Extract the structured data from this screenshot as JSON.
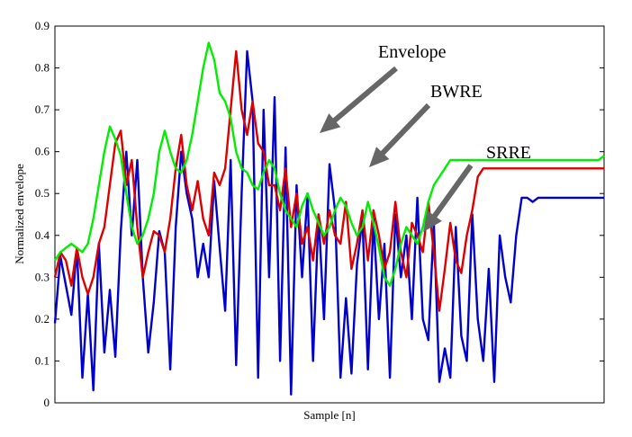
{
  "chart_data": {
    "type": "line",
    "title": "",
    "xlabel": "Sample [n]",
    "ylabel": "Normalized envelope",
    "ylim": [
      0,
      0.9
    ],
    "xlim": [
      0,
      100
    ],
    "grid": false,
    "legend": "none",
    "y_ticks": [
      "0",
      "0.1",
      "0.2",
      "0.3",
      "0.4",
      "0.5",
      "0.6",
      "0.7",
      "0.8",
      "0.9"
    ],
    "annotations": [
      {
        "text": "Envelope",
        "target": "blue"
      },
      {
        "text": "BWRE",
        "target": "green"
      },
      {
        "text": "SRRE",
        "target": "red"
      }
    ],
    "series": [
      {
        "color": "#0000cc",
        "x": [
          0,
          1,
          2,
          3,
          4,
          5,
          6,
          7,
          8,
          9,
          10,
          11,
          12,
          13,
          14,
          15,
          16,
          17,
          18,
          19,
          20,
          21,
          22,
          23,
          24,
          25,
          26,
          27,
          28,
          29,
          30,
          31,
          32,
          33,
          34,
          35,
          36,
          37,
          38,
          39,
          40,
          41,
          42,
          43,
          44,
          45,
          46,
          47,
          48,
          49,
          50,
          51,
          52,
          53,
          54,
          55,
          56,
          57,
          58,
          59,
          60,
          61,
          62,
          63,
          64,
          65,
          66,
          67,
          68,
          69,
          70,
          71,
          72,
          73,
          74,
          75,
          76,
          77,
          78,
          79,
          80,
          81,
          82,
          83,
          84,
          85,
          86,
          87,
          88,
          89,
          90,
          91,
          92,
          93,
          94,
          95,
          96,
          97,
          98,
          99,
          100
        ],
        "values": [
          0.19,
          0.35,
          0.28,
          0.21,
          0.37,
          0.06,
          0.26,
          0.03,
          0.38,
          0.12,
          0.27,
          0.11,
          0.41,
          0.6,
          0.4,
          0.58,
          0.3,
          0.12,
          0.24,
          0.41,
          0.36,
          0.08,
          0.42,
          0.6,
          0.5,
          0.44,
          0.3,
          0.38,
          0.3,
          0.53,
          0.37,
          0.22,
          0.58,
          0.09,
          0.5,
          0.84,
          0.72,
          0.06,
          0.7,
          0.3,
          0.73,
          0.1,
          0.61,
          0.02,
          0.52,
          0.3,
          0.5,
          0.1,
          0.45,
          0.2,
          0.57,
          0.46,
          0.06,
          0.25,
          0.07,
          0.33,
          0.44,
          0.08,
          0.44,
          0.2,
          0.38,
          0.06,
          0.45,
          0.3,
          0.4,
          0.2,
          0.49,
          0.2,
          0.15,
          0.43,
          0.05,
          0.13,
          0.06,
          0.42,
          0.16,
          0.1,
          0.45,
          0.2,
          0.1,
          0.32,
          0.05,
          0.4,
          0.3,
          0.24,
          0.4,
          0.49,
          0.49,
          0.48,
          0.49,
          0.49,
          0.49,
          0.49,
          0.49,
          0.49,
          0.49,
          0.49,
          0.49,
          0.49,
          0.49,
          0.49,
          0.49
        ]
      },
      {
        "color": "#dd0000",
        "x": [
          0,
          1,
          2,
          3,
          4,
          5,
          6,
          7,
          8,
          9,
          10,
          11,
          12,
          13,
          14,
          15,
          16,
          17,
          18,
          19,
          20,
          21,
          22,
          23,
          24,
          25,
          26,
          27,
          28,
          29,
          30,
          31,
          32,
          33,
          34,
          35,
          36,
          37,
          38,
          39,
          40,
          41,
          42,
          43,
          44,
          45,
          46,
          47,
          48,
          49,
          50,
          51,
          52,
          53,
          54,
          55,
          56,
          57,
          58,
          59,
          60,
          61,
          62,
          63,
          64,
          65,
          66,
          67,
          68,
          69,
          70,
          71,
          72,
          73,
          74,
          75,
          76,
          77,
          78,
          79,
          80,
          81,
          82,
          83,
          84,
          85,
          86,
          87,
          88,
          89,
          90,
          91,
          92,
          93,
          94,
          95,
          96,
          97,
          98,
          99,
          100
        ],
        "values": [
          0.3,
          0.36,
          0.34,
          0.28,
          0.37,
          0.3,
          0.26,
          0.3,
          0.38,
          0.42,
          0.52,
          0.62,
          0.65,
          0.52,
          0.58,
          0.42,
          0.3,
          0.36,
          0.41,
          0.4,
          0.36,
          0.44,
          0.56,
          0.64,
          0.52,
          0.46,
          0.53,
          0.44,
          0.4,
          0.55,
          0.52,
          0.56,
          0.7,
          0.84,
          0.7,
          0.64,
          0.72,
          0.62,
          0.6,
          0.52,
          0.52,
          0.46,
          0.56,
          0.42,
          0.5,
          0.38,
          0.42,
          0.34,
          0.45,
          0.38,
          0.46,
          0.4,
          0.38,
          0.48,
          0.32,
          0.38,
          0.46,
          0.34,
          0.46,
          0.4,
          0.32,
          0.36,
          0.48,
          0.36,
          0.3,
          0.43,
          0.4,
          0.36,
          0.48,
          0.36,
          0.22,
          0.32,
          0.43,
          0.34,
          0.31,
          0.4,
          0.46,
          0.54,
          0.56,
          0.56,
          0.56,
          0.56,
          0.56,
          0.56,
          0.56,
          0.56,
          0.56,
          0.56,
          0.56,
          0.56,
          0.56,
          0.56,
          0.56,
          0.56,
          0.56,
          0.56,
          0.56,
          0.56,
          0.56,
          0.56,
          0.56
        ]
      },
      {
        "color": "#00ee00",
        "x": [
          0,
          1,
          2,
          3,
          4,
          5,
          6,
          7,
          8,
          9,
          10,
          11,
          12,
          13,
          14,
          15,
          16,
          17,
          18,
          19,
          20,
          21,
          22,
          23,
          24,
          25,
          26,
          27,
          28,
          29,
          30,
          31,
          32,
          33,
          34,
          35,
          36,
          37,
          38,
          39,
          40,
          41,
          42,
          43,
          44,
          45,
          46,
          47,
          48,
          49,
          50,
          51,
          52,
          53,
          54,
          55,
          56,
          57,
          58,
          59,
          60,
          61,
          62,
          63,
          64,
          65,
          66,
          67,
          68,
          69,
          70,
          71,
          72,
          73,
          74,
          75,
          76,
          77,
          78,
          79,
          80,
          81,
          82,
          83,
          84,
          85,
          86,
          87,
          88,
          89,
          90,
          91,
          92,
          93,
          94,
          95,
          96,
          97,
          98,
          99,
          100
        ],
        "values": [
          0.34,
          0.36,
          0.37,
          0.38,
          0.37,
          0.36,
          0.38,
          0.44,
          0.52,
          0.6,
          0.66,
          0.63,
          0.59,
          0.5,
          0.42,
          0.38,
          0.4,
          0.44,
          0.5,
          0.6,
          0.65,
          0.6,
          0.56,
          0.55,
          0.58,
          0.64,
          0.72,
          0.8,
          0.86,
          0.82,
          0.74,
          0.72,
          0.68,
          0.6,
          0.56,
          0.55,
          0.52,
          0.51,
          0.55,
          0.58,
          0.56,
          0.5,
          0.46,
          0.44,
          0.42,
          0.47,
          0.5,
          0.46,
          0.43,
          0.4,
          0.42,
          0.46,
          0.49,
          0.47,
          0.43,
          0.4,
          0.42,
          0.48,
          0.43,
          0.37,
          0.3,
          0.28,
          0.32,
          0.38,
          0.42,
          0.4,
          0.38,
          0.42,
          0.48,
          0.52,
          0.54,
          0.56,
          0.58,
          0.58,
          0.58,
          0.58,
          0.58,
          0.58,
          0.58,
          0.58,
          0.58,
          0.58,
          0.58,
          0.58,
          0.58,
          0.58,
          0.58,
          0.58,
          0.58,
          0.58,
          0.58,
          0.58,
          0.58,
          0.58,
          0.58,
          0.58,
          0.58,
          0.58,
          0.58,
          0.58,
          0.59
        ]
      }
    ]
  }
}
